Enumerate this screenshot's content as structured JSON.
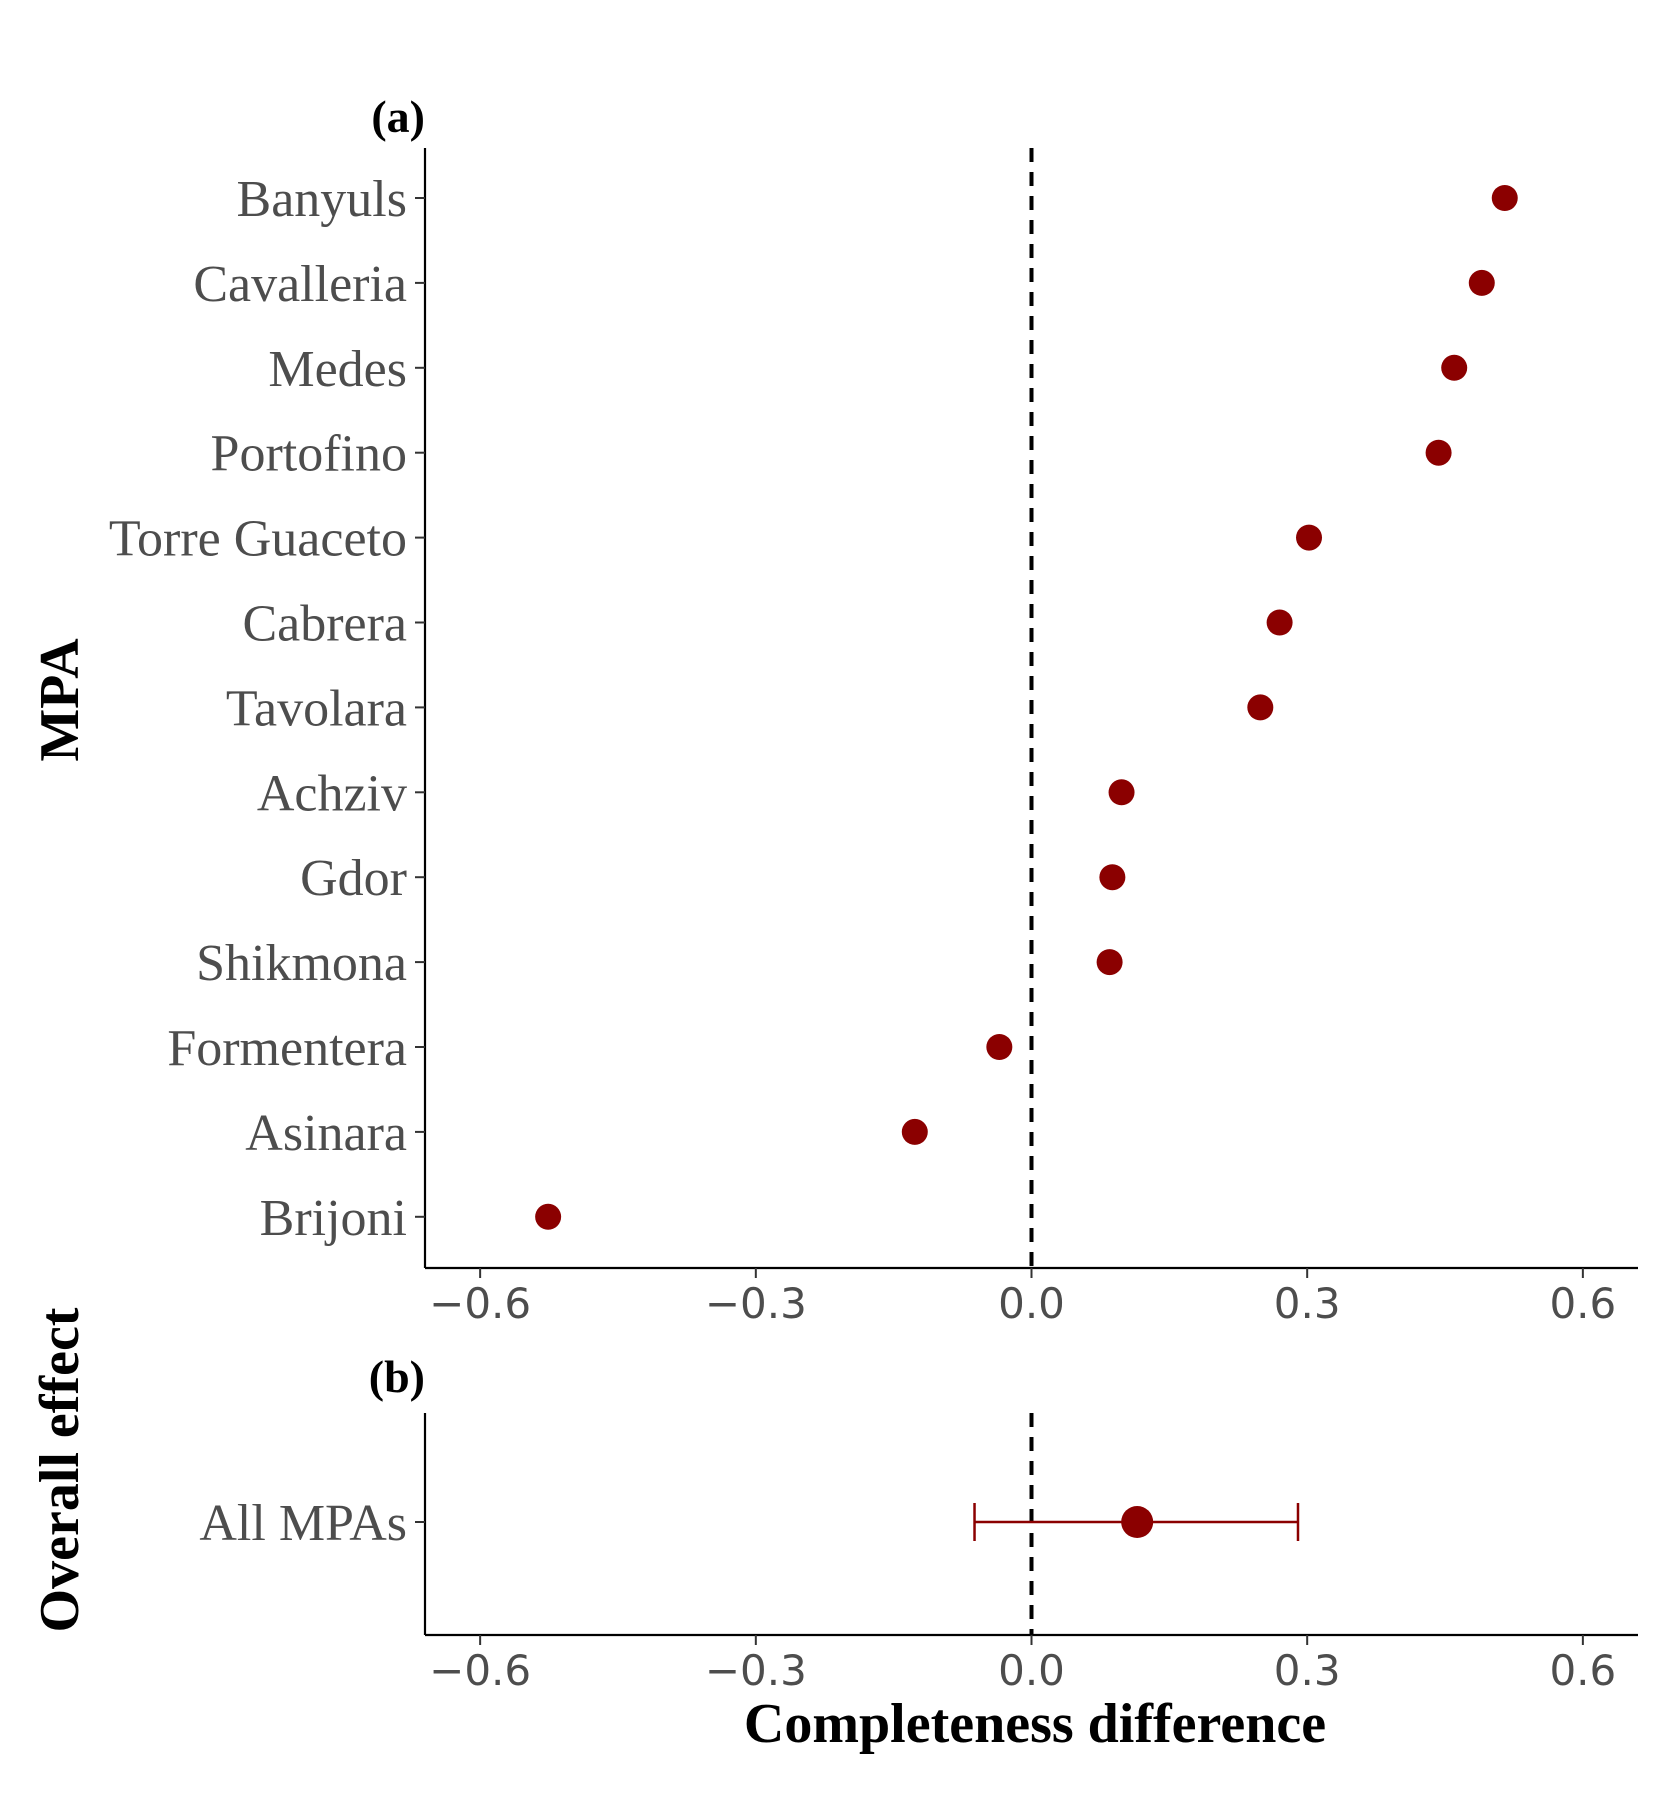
{
  "chart_data": [
    {
      "panel_label": "(a)",
      "type": "scatter",
      "ylabel": "MPA",
      "xlabel": "",
      "xlim": [
        -0.66,
        0.66
      ],
      "xticks": [
        "−0.6",
        "−0.3",
        "0.0",
        "0.3",
        "0.6"
      ],
      "xtick_values": [
        -0.6,
        -0.3,
        0.0,
        0.3,
        0.6
      ],
      "reference_line": 0.0,
      "grid": false,
      "point_color": "#8b0000",
      "categories": [
        "Banyuls",
        "Cavalleria",
        "Medes",
        "Portofino",
        "Torre Guaceto",
        "Cabrera",
        "Tavolara",
        "Achziv",
        "Gdor",
        "Shikmona",
        "Formentera",
        "Asinara",
        "Brijoni"
      ],
      "values": [
        0.515,
        0.49,
        0.46,
        0.443,
        0.302,
        0.27,
        0.249,
        0.098,
        0.088,
        0.085,
        -0.035,
        -0.127,
        -0.526
      ]
    },
    {
      "panel_label": "(b)",
      "type": "scatter",
      "ylabel": "Overall effect",
      "xlabel": "Completeness difference",
      "xlim": [
        -0.66,
        0.66
      ],
      "xticks": [
        "−0.6",
        "−0.3",
        "0.0",
        "0.3",
        "0.6"
      ],
      "xtick_values": [
        -0.6,
        -0.3,
        0.0,
        0.3,
        0.6
      ],
      "reference_line": 0.0,
      "grid": false,
      "point_color": "#8b0000",
      "categories": [
        "All MPAs"
      ],
      "values": [
        0.115
      ],
      "ci_lower": [
        -0.062
      ],
      "ci_upper": [
        0.29
      ]
    }
  ]
}
